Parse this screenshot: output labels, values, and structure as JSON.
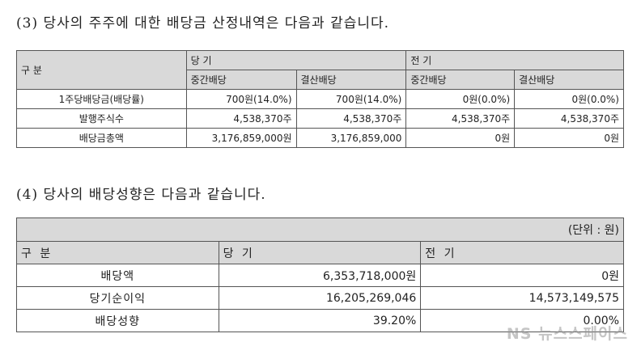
{
  "section3": {
    "heading": "(3) 당사의 주주에 대한 배당금 산정내역은 다음과 같습니다.",
    "head": {
      "label": "구 분",
      "current": "당 기",
      "previous": "전 기",
      "interim": "중간배당",
      "final": "결산배당"
    },
    "rows": [
      {
        "label": "1주당배당금(배당률)",
        "values": [
          "700원(14.0%)",
          "700원(14.0%)",
          "0원(0.0%)",
          "0원(0.0%)"
        ]
      },
      {
        "label": "발행주식수",
        "values": [
          "4,538,370주",
          "4,538,370주",
          "4,538,370주",
          "4,538,370주"
        ]
      },
      {
        "label": "배당금총액",
        "values": [
          "3,176,859,000원",
          "3,176,859,000",
          "0원",
          "0원"
        ]
      }
    ]
  },
  "section4": {
    "heading": "(4) 당사의 배당성향은 다음과 같습니다.",
    "unit": "(단위 : 원)",
    "head": {
      "label": "구 분",
      "current": "당 기",
      "previous": "전 기"
    },
    "rows": [
      {
        "label": "배당액",
        "values": [
          "6,353,718,000원",
          "0원"
        ]
      },
      {
        "label": "당기순이익",
        "values": [
          "16,205,269,046",
          "14,573,149,575"
        ]
      },
      {
        "label": "배당성향",
        "values": [
          "39.20%",
          "0.00%"
        ]
      }
    ]
  },
  "watermark": "NS 뉴스스페이스"
}
